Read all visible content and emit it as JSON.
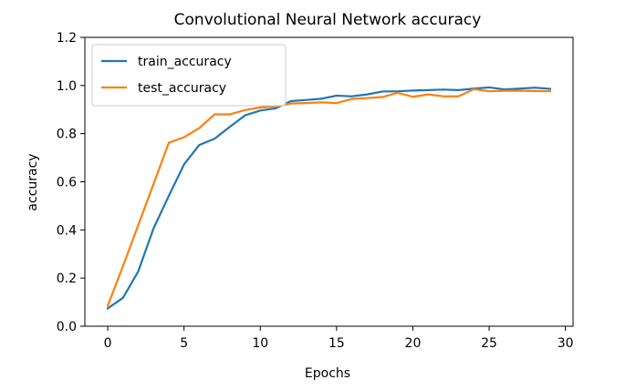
{
  "chart_data": {
    "type": "line",
    "title": "Convolutional Neural Network accuracy",
    "xlabel": "Epochs",
    "ylabel": "accuracy",
    "xlim": [
      -1.5,
      30.5
    ],
    "ylim": [
      0.0,
      1.2
    ],
    "xticks": [
      "0",
      "5",
      "10",
      "15",
      "20",
      "25",
      "30"
    ],
    "yticks": [
      "0.0",
      "0.2",
      "0.4",
      "0.6",
      "0.8",
      "1.0",
      "1.2"
    ],
    "grid": false,
    "legend_position": "upper-left",
    "x": [
      0,
      1,
      2,
      3,
      4,
      5,
      6,
      7,
      8,
      9,
      10,
      11,
      12,
      13,
      14,
      15,
      16,
      17,
      18,
      19,
      20,
      21,
      22,
      23,
      24,
      25,
      26,
      27,
      28,
      29
    ],
    "series": [
      {
        "name": "train_accuracy",
        "color": "#1f77b4",
        "values": [
          0.074,
          0.118,
          0.228,
          0.406,
          0.541,
          0.672,
          0.753,
          0.779,
          0.828,
          0.876,
          0.896,
          0.905,
          0.935,
          0.94,
          0.945,
          0.958,
          0.955,
          0.963,
          0.975,
          0.976,
          0.979,
          0.981,
          0.983,
          0.981,
          0.987,
          0.992,
          0.984,
          0.987,
          0.991,
          0.986
        ]
      },
      {
        "name": "test_accuracy",
        "color": "#ff7f0e",
        "values": [
          0.085,
          0.25,
          0.42,
          0.59,
          0.762,
          0.785,
          0.823,
          0.88,
          0.88,
          0.898,
          0.909,
          0.913,
          0.925,
          0.927,
          0.93,
          0.927,
          0.944,
          0.948,
          0.952,
          0.97,
          0.953,
          0.963,
          0.955,
          0.955,
          0.985,
          0.976,
          0.978,
          0.978,
          0.977,
          0.976
        ]
      }
    ]
  }
}
